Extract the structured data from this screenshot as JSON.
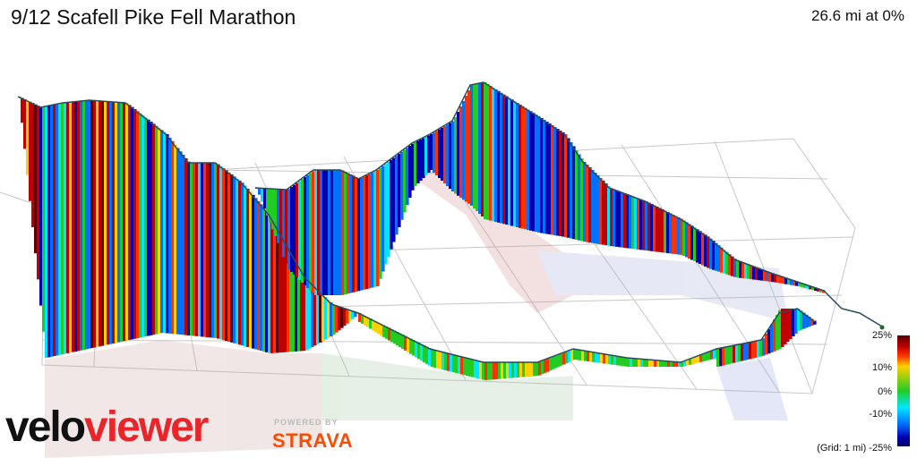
{
  "header": {
    "title": "9/12 Scafell Pike Fell Marathon",
    "stats": "26.6 mi at 0%"
  },
  "legend": {
    "ticks": [
      "25%",
      "10%",
      "0%",
      "-10%"
    ],
    "grid_note": "(Grid: 1 mi) -25%",
    "colors": [
      "#5a0000",
      "#c00000",
      "#ff3000",
      "#ffd000",
      "#22cc22",
      "#00e5ff",
      "#0070ff",
      "#0000b0"
    ]
  },
  "branding": {
    "logo_part1": "velo",
    "logo_part2": "viewer",
    "powered_by": "POWERED BY",
    "strava": "STRAVA"
  },
  "icons": [
    "veloviewer-logo",
    "strava-logo"
  ]
}
